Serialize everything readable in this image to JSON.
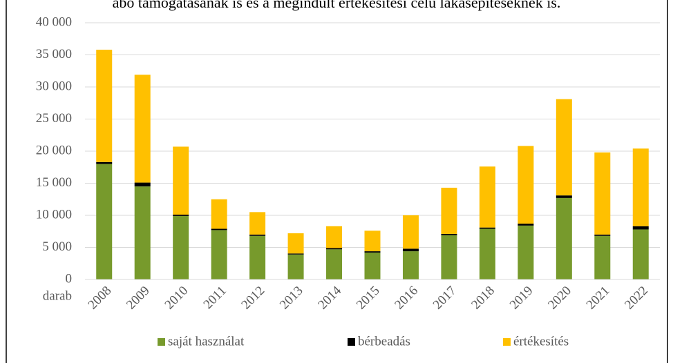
{
  "header_text": "abó támogatásának is és a megindult értékesítési célú lakásépítéseknek is.",
  "chart_data": {
    "type": "stacked_bar",
    "y_axis_label": "darab",
    "categories": [
      "2008",
      "2009",
      "2010",
      "2011",
      "2012",
      "2013",
      "2014",
      "2015",
      "2016",
      "2017",
      "2018",
      "2019",
      "2020",
      "2021",
      "2022"
    ],
    "series": [
      {
        "name": "saját használat",
        "color": "#779a2c",
        "values": [
          18000,
          14500,
          9900,
          7700,
          6800,
          3900,
          4700,
          4200,
          4400,
          6900,
          7900,
          8400,
          12700,
          6800,
          7800
        ]
      },
      {
        "name": "bérbeadás",
        "color": "#000000",
        "values": [
          300,
          600,
          200,
          200,
          200,
          150,
          200,
          200,
          400,
          200,
          200,
          300,
          400,
          200,
          500
        ]
      },
      {
        "name": "értékesítés",
        "color": "#ffc000",
        "values": [
          17500,
          16800,
          10600,
          4600,
          3500,
          3150,
          3400,
          3200,
          5200,
          7200,
          9500,
          12100,
          15000,
          12800,
          12100
        ]
      }
    ],
    "ylim": [
      0,
      40000
    ],
    "yticks": [
      0,
      {
        "value": 5000,
        "label": "5 000"
      },
      {
        "value": 10000,
        "label": "10 000"
      },
      {
        "value": 15000,
        "label": "15 000"
      },
      {
        "value": 20000,
        "label": "20 000"
      },
      {
        "value": 25000,
        "label": "25 000"
      },
      {
        "value": 30000,
        "label": "30 000"
      },
      {
        "value": 35000,
        "label": "35 000"
      },
      {
        "value": 40000,
        "label": "40 000"
      }
    ],
    "grid": true,
    "legend": "bottom"
  }
}
